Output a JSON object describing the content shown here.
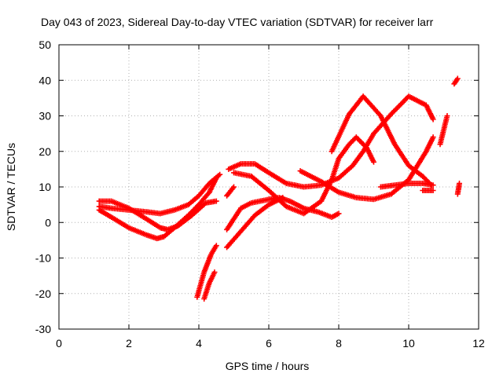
{
  "chart_data": {
    "type": "scatter",
    "title": "Day 043 of 2023, Sidereal Day-to-day VTEC variation (SDTVAR) for receiver larr",
    "xlabel": "GPS time / hours",
    "ylabel": "SDTVAR / TECUs",
    "xlim": [
      0,
      12
    ],
    "ylim": [
      -30,
      50
    ],
    "xticks": [
      "0",
      "2",
      "4",
      "6",
      "8",
      "10",
      "12"
    ],
    "yticks": [
      "-30",
      "-20",
      "-10",
      "0",
      "10",
      "20",
      "30",
      "40",
      "50"
    ],
    "grid": true,
    "marker": "+",
    "color": "#ff0000",
    "series": [
      {
        "x": [
          1.15,
          1.5,
          2.0,
          2.5,
          2.8,
          3.0,
          3.3,
          3.7,
          4.0,
          4.3,
          4.5
        ],
        "y": [
          3.5,
          1.5,
          -1.5,
          -3.5,
          -4.5,
          -4.0,
          -1.5,
          2.0,
          5.0,
          8.5,
          12.5
        ]
      },
      {
        "x": [
          1.15,
          1.5,
          2.0,
          2.5,
          2.9,
          3.1,
          3.4,
          3.8,
          4.2,
          4.5
        ],
        "y": [
          6.0,
          6.0,
          4.0,
          1.0,
          -1.5,
          -2.0,
          -1.0,
          2.0,
          5.5,
          6.0
        ]
      },
      {
        "x": [
          1.15,
          1.5,
          2.0,
          2.5,
          2.9,
          3.3,
          3.7,
          4.0,
          4.3,
          4.6
        ],
        "y": [
          4.5,
          4.0,
          3.5,
          3.0,
          2.5,
          3.5,
          5.0,
          7.5,
          11.0,
          13.5
        ]
      },
      {
        "x": [
          4.85,
          5.2,
          5.6,
          6.0,
          6.5,
          7.0,
          7.5,
          8.0,
          8.4,
          8.7,
          9.0,
          9.5,
          10.0,
          10.5,
          10.7
        ],
        "y": [
          15.0,
          16.5,
          16.5,
          14.0,
          11.0,
          10.0,
          10.5,
          12.5,
          16.0,
          20.0,
          25.0,
          30.5,
          35.5,
          33.0,
          29.0
        ]
      },
      {
        "x": [
          5.0,
          5.5,
          6.0,
          6.5,
          7.0,
          7.5,
          7.8,
          8.0,
          8.3,
          8.5,
          8.8,
          9.0
        ],
        "y": [
          14.0,
          13.0,
          9.0,
          4.5,
          2.5,
          6.0,
          12.0,
          18.0,
          22.0,
          24.0,
          21.0,
          17.0
        ]
      },
      {
        "x": [
          4.8,
          5.2,
          5.5,
          6.0,
          6.3,
          6.6,
          7.0,
          7.4,
          7.8,
          8.0
        ],
        "y": [
          -2.0,
          4.0,
          5.5,
          6.5,
          7.0,
          6.0,
          4.0,
          3.0,
          1.5,
          2.5
        ]
      },
      {
        "x": [
          4.8,
          5.2,
          5.6,
          6.0,
          6.4
        ],
        "y": [
          -7.0,
          -2.5,
          2.0,
          5.0,
          7.0
        ]
      },
      {
        "x": [
          6.9,
          7.5,
          8.0,
          8.5,
          9.0,
          9.5,
          10.0,
          10.5,
          10.7
        ],
        "y": [
          14.5,
          11.5,
          8.5,
          7.0,
          6.5,
          8.0,
          12.0,
          20.0,
          24.0
        ]
      },
      {
        "x": [
          7.8,
          8.3,
          8.7,
          9.2,
          9.6,
          10.0,
          10.4,
          10.65
        ],
        "y": [
          20.0,
          30.5,
          35.5,
          30.0,
          22.0,
          16.0,
          13.0,
          10.5
        ]
      },
      {
        "x": [
          9.2,
          9.6,
          10.0,
          10.4,
          10.7
        ],
        "y": [
          10.0,
          10.5,
          11.0,
          11.0,
          10.5
        ]
      },
      {
        "x": [
          3.95,
          4.15,
          4.35,
          4.5
        ],
        "y": [
          -21.0,
          -14.0,
          -9.0,
          -6.5
        ]
      },
      {
        "x": [
          4.15,
          4.3,
          4.45
        ],
        "y": [
          -21.5,
          -17.0,
          -14.0
        ]
      },
      {
        "x": [
          4.8,
          5.0
        ],
        "y": [
          7.5,
          10.0
        ]
      },
      {
        "x": [
          10.4,
          10.7
        ],
        "y": [
          9.0,
          9.0
        ]
      },
      {
        "x": [
          10.9,
          11.1
        ],
        "y": [
          22.0,
          30.0
        ]
      },
      {
        "x": [
          11.3,
          11.4
        ],
        "y": [
          39.0,
          40.5
        ]
      },
      {
        "x": [
          11.4,
          11.45
        ],
        "y": [
          8.0,
          11.0
        ]
      }
    ]
  }
}
